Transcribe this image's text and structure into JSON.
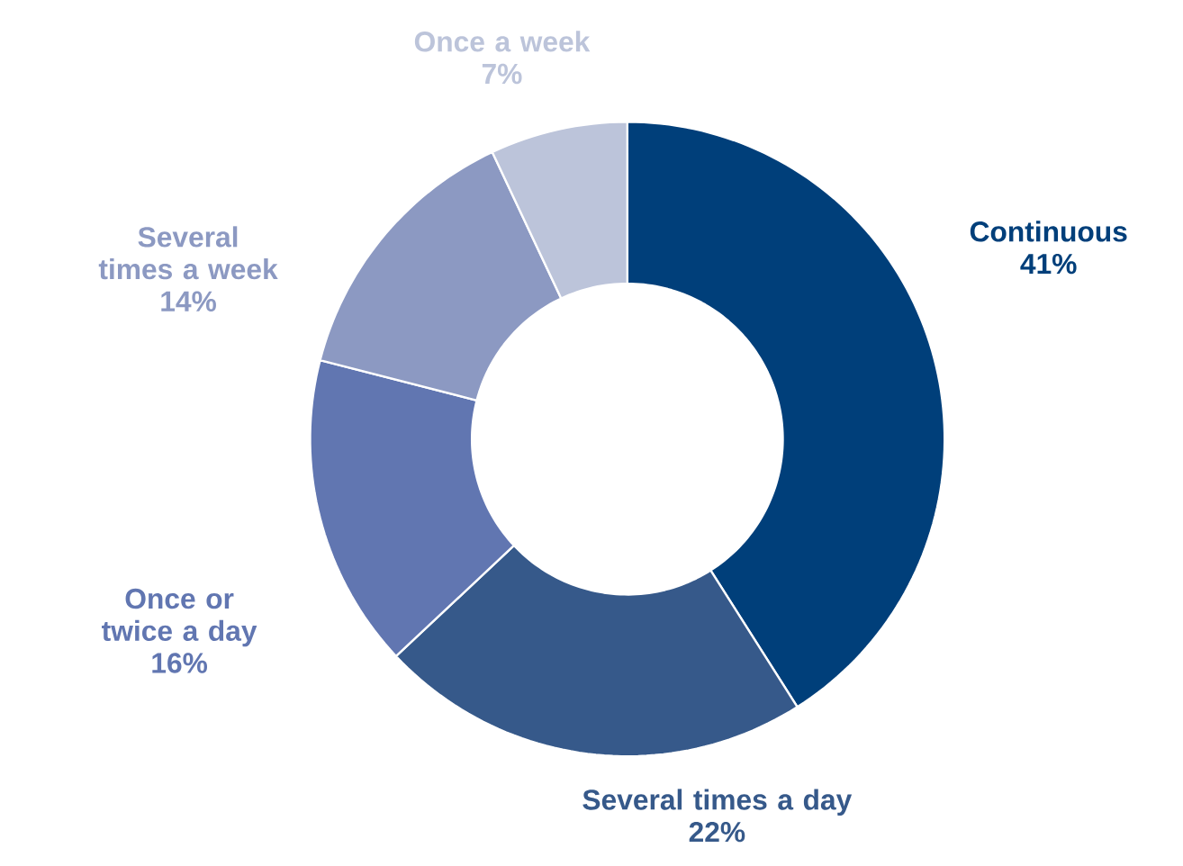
{
  "chart_data": {
    "type": "donut",
    "categories": [
      "Continuous",
      "Several times a day",
      "Once or twice a day",
      "Several times a week",
      "Once a week"
    ],
    "values": [
      41,
      22,
      16,
      14,
      7
    ],
    "value_labels": [
      "41%",
      "22%",
      "16%",
      "14%",
      "7%"
    ],
    "colors": [
      "#003f7a",
      "#36598a",
      "#6176b1",
      "#8c99c2",
      "#bcc4da"
    ]
  }
}
